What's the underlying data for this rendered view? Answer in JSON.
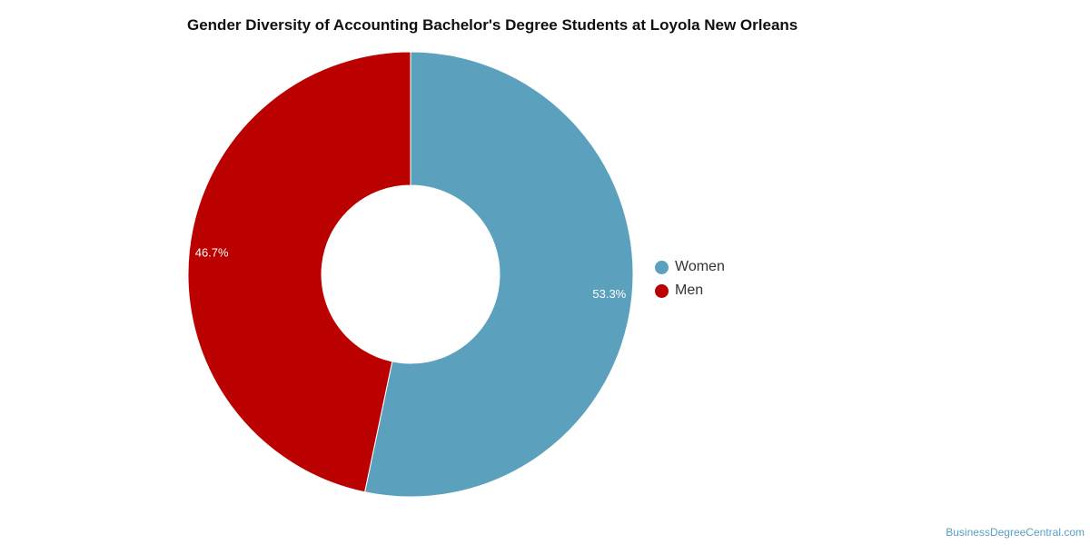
{
  "chart_data": {
    "type": "pie",
    "variant": "donut",
    "title": "Gender Diversity of Accounting Bachelor's Degree Students at Loyola New Orleans",
    "slices": [
      {
        "label": "Women",
        "value": 53.3,
        "display": "53.3%",
        "color": "#5ba1be"
      },
      {
        "label": "Men",
        "value": 46.7,
        "display": "46.7%",
        "color": "#bb0000"
      }
    ],
    "legend_position": "right"
  },
  "watermark": "BusinessDegreeCentral.com"
}
